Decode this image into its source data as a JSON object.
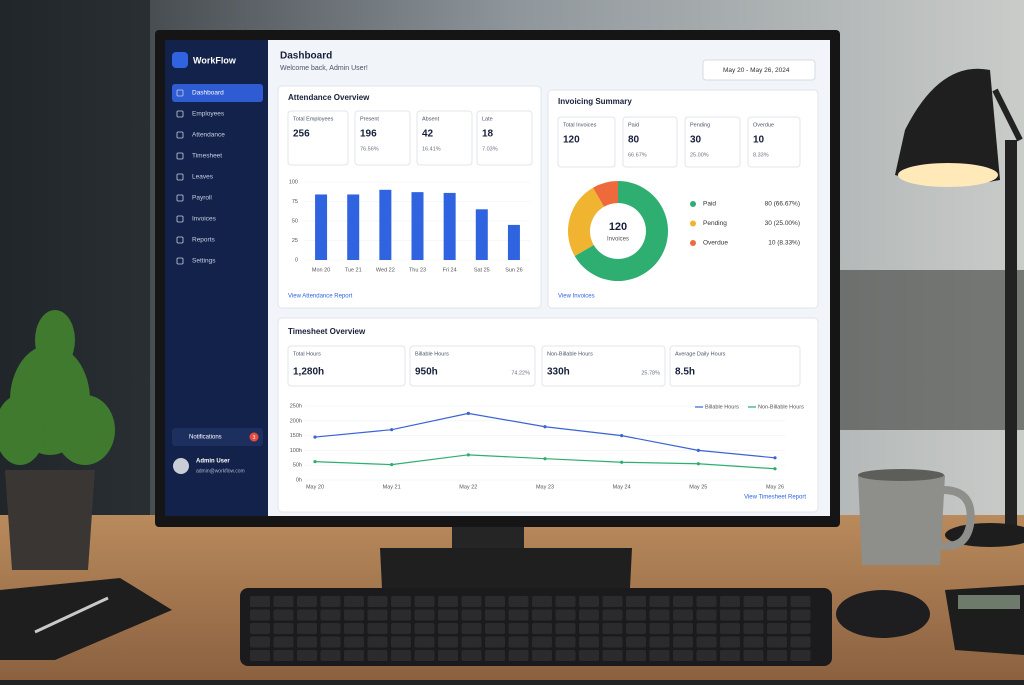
{
  "sidebar": {
    "brand": "WorkFlow",
    "menu": [
      "Dashboard",
      "Employees",
      "Attendance",
      "Timesheet",
      "Leaves",
      "Payroll",
      "Invoices",
      "Reports",
      "Settings"
    ],
    "notifications": {
      "label": "Notifications",
      "count": "3"
    },
    "user": {
      "name": "Admin User",
      "email": "admin@workflow.com"
    }
  },
  "header": {
    "title": "Dashboard",
    "subtitle": "Welcome back, Admin User!",
    "date_range": "May 20 - May 26, 2024"
  },
  "attendance": {
    "title": "Attendance Overview",
    "stats": [
      {
        "label": "Total Employees",
        "value": "256"
      },
      {
        "label": "Present",
        "value": "196",
        "sub": "76.56%"
      },
      {
        "label": "Absent",
        "value": "42",
        "sub": "16.41%"
      },
      {
        "label": "Late",
        "value": "18",
        "sub": "7.03%"
      }
    ],
    "chart": {
      "type": "bar",
      "categories": [
        "Mon 20",
        "Tue 21",
        "Wed 22",
        "Thu 23",
        "Fri 24",
        "Sat 25",
        "Sun 26"
      ],
      "values": [
        84,
        84,
        90,
        87,
        86,
        65,
        45
      ],
      "color": "#2f63e0",
      "ylim": [
        0,
        100
      ],
      "yticks": [
        0,
        25,
        50,
        75,
        100
      ],
      "grid": true
    },
    "link": "View Attendance Report"
  },
  "invoicing": {
    "title": "Invoicing Summary",
    "stats": [
      {
        "label": "Total Invoices",
        "value": "120"
      },
      {
        "label": "Paid",
        "value": "80",
        "sub": "66.67%"
      },
      {
        "label": "Pending",
        "value": "30",
        "sub": "25.00%"
      },
      {
        "label": "Overdue",
        "value": "10",
        "sub": "8.33%"
      }
    ],
    "chart": {
      "type": "pie",
      "center_value": "120",
      "center_label": "Invoices",
      "categories": [
        "Paid",
        "Pending",
        "Overdue"
      ],
      "values": [
        80,
        30,
        10
      ],
      "value_labels": [
        "80 (66.67%)",
        "30 (25.00%)",
        "10 (8.33%)"
      ],
      "colors": [
        "#2fae72",
        "#f0b431",
        "#ee6a3c"
      ]
    },
    "link": "View Invoices"
  },
  "timesheet": {
    "title": "Timesheet Overview",
    "stats": [
      {
        "label": "Total Hours",
        "value": "1,280h"
      },
      {
        "label": "Billable Hours",
        "value": "950h",
        "sub": "74.22%"
      },
      {
        "label": "Non-Billable Hours",
        "value": "330h",
        "sub": "25.78%"
      },
      {
        "label": "Average Daily Hours",
        "value": "8.5h"
      }
    ],
    "chart": {
      "type": "line",
      "categories": [
        "May 20",
        "May 21",
        "May 22",
        "May 23",
        "May 24",
        "May 25",
        "May 26"
      ],
      "series": [
        {
          "name": "Billable Hours",
          "color": "#3b63d6",
          "values": [
            145,
            170,
            225,
            180,
            150,
            100,
            75
          ]
        },
        {
          "name": "Non-Billable Hours",
          "color": "#2fae72",
          "values": [
            62,
            52,
            85,
            72,
            60,
            55,
            38
          ]
        }
      ],
      "ylim": [
        0,
        250
      ],
      "yticks": [
        {
          "value": 0,
          "label": "0h"
        },
        {
          "value": 50,
          "label": "50h"
        },
        {
          "value": 100,
          "label": "100h"
        },
        {
          "value": 150,
          "label": "150h"
        },
        {
          "value": 200,
          "label": "200h"
        },
        {
          "value": 250,
          "label": "250h"
        }
      ],
      "grid": true
    },
    "link": "View Timesheet Report"
  }
}
